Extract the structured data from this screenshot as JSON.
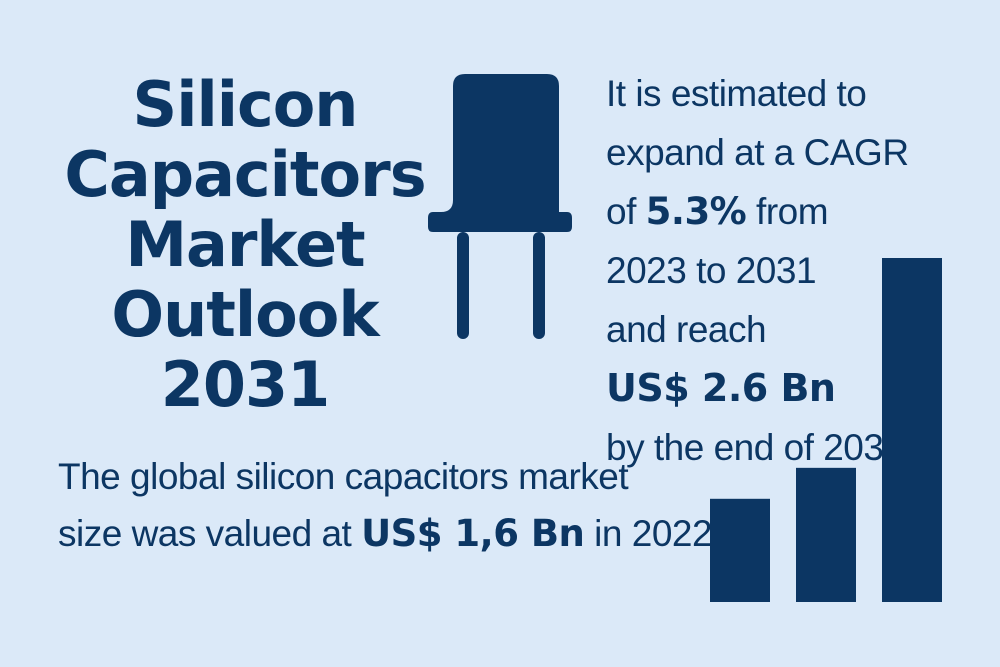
{
  "title": {
    "lines": [
      "Silicon",
      "Capacitors",
      "Market",
      "Outlook",
      "2031"
    ]
  },
  "projection": {
    "line1": "It is estimated to",
    "line2": "expand at a CAGR",
    "line3_prefix": "of ",
    "cagr": "5.3%",
    "line3_suffix": " from",
    "line4": "2023 to 2031",
    "line5": "and reach",
    "forecast_value": "US$ 2.6 Bn",
    "line7": "by the end of 2031"
  },
  "baseline": {
    "line1": "The global silicon capacitors market",
    "line2_prefix": "size was valued at ",
    "value": "US$ 1,6 Bn",
    "line2_suffix": " in 2022"
  },
  "icons": {
    "component": "capacitor-icon",
    "growth": "bar-chart-icon"
  },
  "bar_levels": [
    0.3,
    0.39,
    1.0
  ],
  "colors": {
    "background": "#dbe9f8",
    "primary": "#0c3663"
  }
}
